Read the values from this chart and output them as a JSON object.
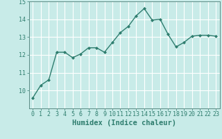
{
  "x": [
    0,
    1,
    2,
    3,
    4,
    5,
    6,
    7,
    8,
    9,
    10,
    11,
    12,
    13,
    14,
    15,
    16,
    17,
    18,
    19,
    20,
    21,
    22,
    23
  ],
  "y": [
    9.6,
    10.3,
    10.6,
    12.15,
    12.15,
    11.85,
    12.05,
    12.4,
    12.4,
    12.15,
    12.7,
    13.25,
    13.6,
    14.2,
    14.6,
    13.95,
    14.0,
    13.15,
    12.45,
    12.7,
    13.05,
    13.1,
    13.1,
    13.05
  ],
  "line_color": "#2e7d6e",
  "marker": "D",
  "marker_size": 2,
  "bg_color": "#c8ebe8",
  "grid_color": "#ffffff",
  "xlabel": "Humidex (Indice chaleur)",
  "xlabel_fontsize": 7.5,
  "ylim": [
    9.0,
    15.0
  ],
  "xlim": [
    -0.5,
    23.5
  ],
  "yticks": [
    10,
    11,
    12,
    13,
    14,
    15
  ],
  "xticks": [
    0,
    1,
    2,
    3,
    4,
    5,
    6,
    7,
    8,
    9,
    10,
    11,
    12,
    13,
    14,
    15,
    16,
    17,
    18,
    19,
    20,
    21,
    22,
    23
  ],
  "tick_fontsize": 6,
  "line_width": 1.0,
  "spine_color": "#5a8a84",
  "tick_color": "#2e7d6e"
}
